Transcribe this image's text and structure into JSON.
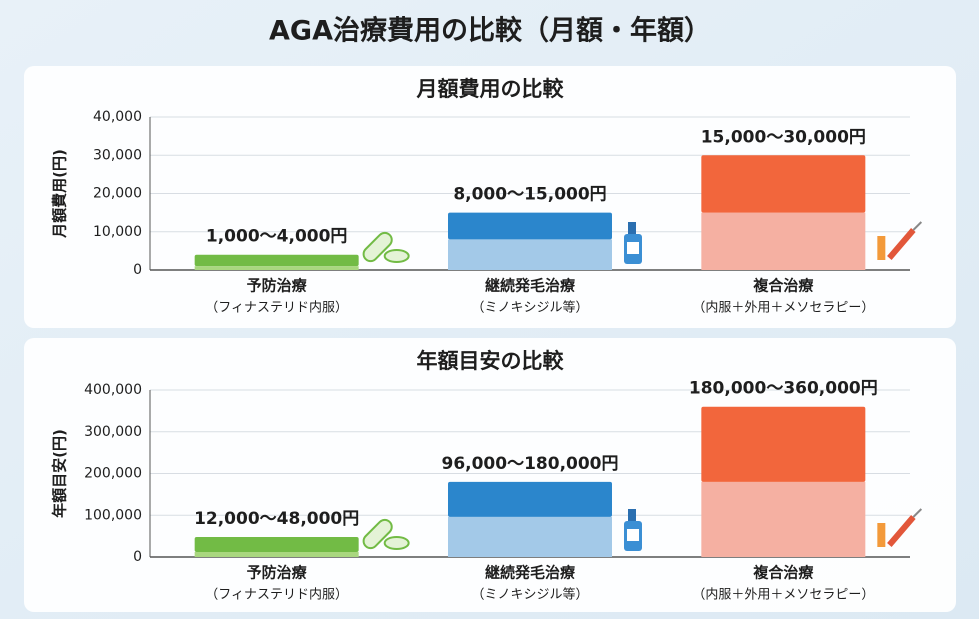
{
  "title": "AGA治療費用の比較（月額・年額）",
  "chart_data": [
    {
      "type": "range-bar",
      "title": "月額費用の比較",
      "y_label": "月額費用(円)",
      "categories": [
        "予防治療",
        "継続発毛治療",
        "複合治療"
      ],
      "category_notes": [
        "（フィナステリド内服）",
        "（ミノキシジル等）",
        "（内服＋外用＋メソセラピー）"
      ],
      "low": [
        1000,
        8000,
        15000
      ],
      "high": [
        4000,
        15000,
        30000
      ],
      "value_labels": [
        "1,000～4,000円",
        "8,000～15,000円",
        "15,000～30,000円"
      ],
      "colors": [
        "#72bb45",
        "#2b86cc",
        "#f2663c"
      ],
      "light_colors": [
        "#a9d77f",
        "#a3c9e8",
        "#f5b0a2"
      ],
      "ylim": [
        0,
        40000
      ],
      "yticks": [
        0,
        {
          "value": 10000,
          "label": "10,000"
        },
        {
          "value": 20000,
          "label": "20,000"
        },
        {
          "value": 30000,
          "label": "30,000"
        },
        {
          "value": 40000,
          "label": "40,000"
        }
      ],
      "grid": true
    },
    {
      "type": "range-bar",
      "title": "年額目安の比較",
      "y_label": "年額目安(円)",
      "categories": [
        "予防治療",
        "継続発毛治療",
        "複合治療"
      ],
      "category_notes": [
        "（フィナステリド内服）",
        "（ミノキシジル等）",
        "（内服＋外用＋メソセラピー）"
      ],
      "low": [
        12000,
        96000,
        180000
      ],
      "high": [
        48000,
        180000,
        360000
      ],
      "value_labels": [
        "12,000～48,000円",
        "96,000～180,000円",
        "180,000～360,000円"
      ],
      "colors": [
        "#72bb45",
        "#2b86cc",
        "#f2663c"
      ],
      "light_colors": [
        "#a9d77f",
        "#a3c9e8",
        "#f5b0a2"
      ],
      "ylim": [
        0,
        400000
      ],
      "yticks": [
        0,
        {
          "value": 100000,
          "label": "100,000"
        },
        {
          "value": 200000,
          "label": "200,000"
        },
        {
          "value": 300000,
          "label": "300,000"
        },
        {
          "value": 400000,
          "label": "400,000"
        }
      ],
      "grid": true
    }
  ]
}
